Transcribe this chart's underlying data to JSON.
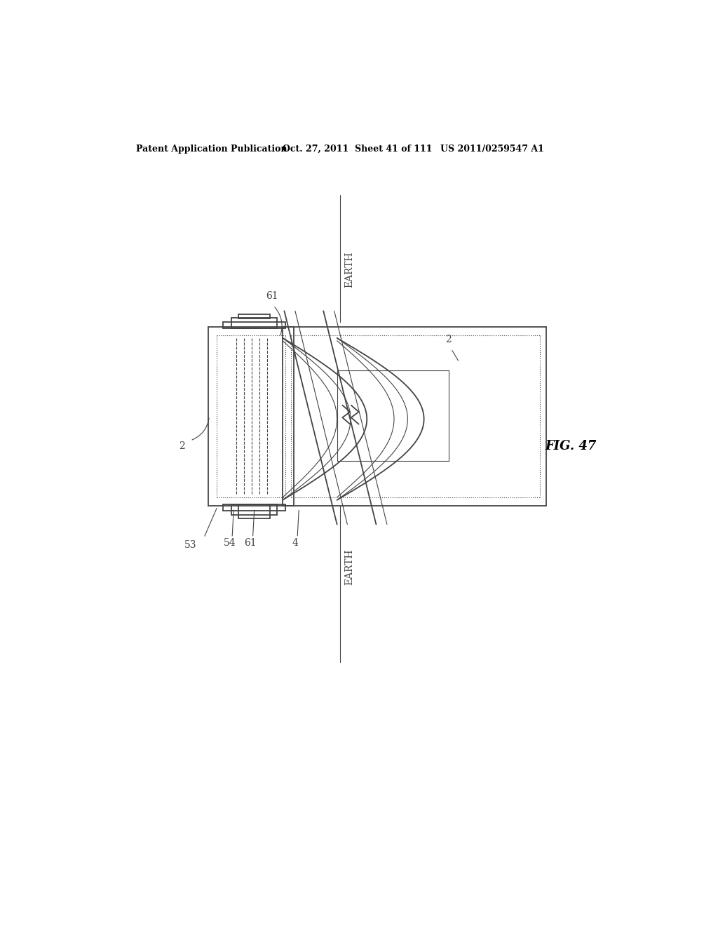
{
  "header_left": "Patent Application Publication",
  "header_mid": "Oct. 27, 2011  Sheet 41 of 111",
  "header_right": "US 2011/0259547 A1",
  "fig_label": "FIG. 47",
  "bg_color": "#ffffff",
  "line_color": "#444444",
  "label_color": "#444444"
}
